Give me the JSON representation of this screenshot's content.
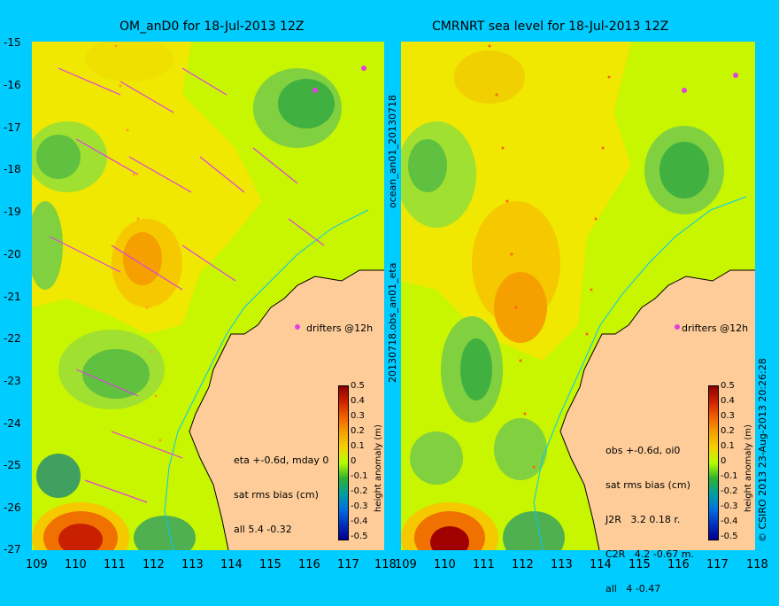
{
  "left_panel": {
    "title": "OM_anD0 for 18-Jul-2013 12Z",
    "stats": [
      "eta +-0.6d, mday 0",
      "sat rms bias (cm)",
      "all 5.4 -0.32"
    ],
    "drifter_label": "drifters @12h",
    "vertical_label_top": "ocean_an01_20130718",
    "vertical_label_bottom": "20130718.obs_an01_eta",
    "colorbar_label": "height anomaly (m)"
  },
  "right_panel": {
    "title": "CMRNRT sea level  for 18-Jul-2013 12Z",
    "stats": [
      "obs +-0.6d, oi0",
      "sat rms bias (cm)",
      "J2R   3.2 0.18 r.",
      "C2R   4.2 -0.67 m.",
      "all   4 -0.47"
    ],
    "drifter_label": "drifters @12h",
    "credit": "© CSIRO 2013   23-Aug-2013 20:26:28",
    "colorbar_label": "height anomaly (m)"
  },
  "axes": {
    "lat_ticks": [
      "-15",
      "-16",
      "-17",
      "-18",
      "-19",
      "-20",
      "-21",
      "-22",
      "-23",
      "-24",
      "-25",
      "-26",
      "-27"
    ],
    "lon_ticks": [
      "109",
      "110",
      "111",
      "112",
      "113",
      "114",
      "115",
      "116",
      "117",
      "118"
    ],
    "lat_range": [
      -27,
      -15
    ],
    "lon_range": [
      109,
      118
    ]
  },
  "colorbar_ticks": [
    "0.5",
    "0.4",
    "0.3",
    "0.2",
    "0.1",
    "0",
    "-0.1",
    "-0.2",
    "-0.3",
    "-0.4",
    "-0.5"
  ],
  "colors": {
    "background": "#00ccff",
    "land": "#fdcc99",
    "sea_base": "#c8f500",
    "drifter": "#e040e0"
  }
}
